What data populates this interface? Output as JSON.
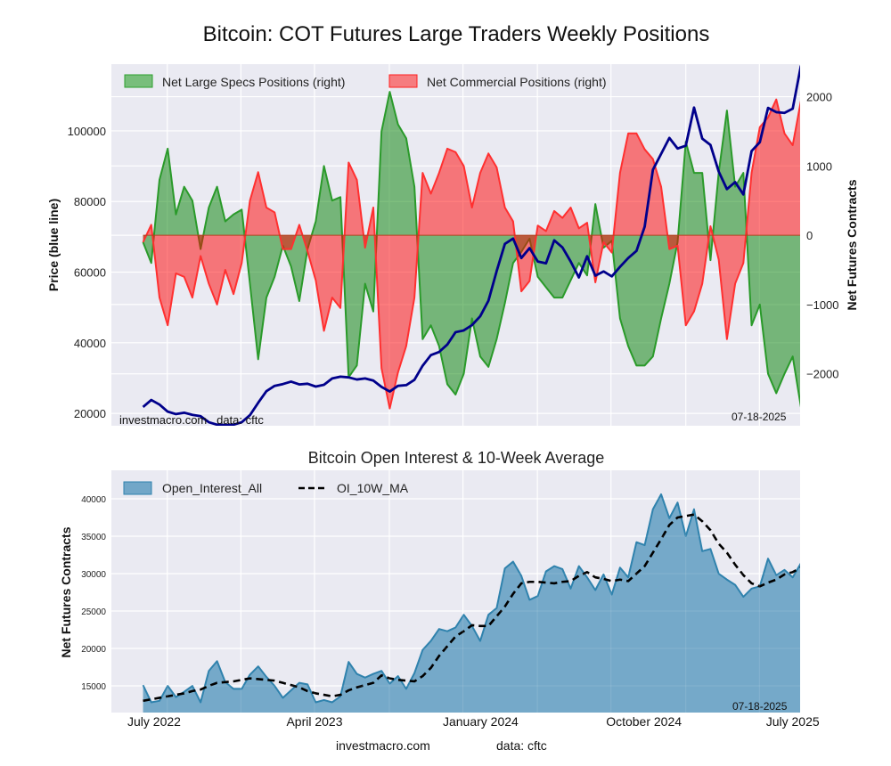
{
  "chart_data": [
    {
      "type": "area",
      "title": "Bitcoin: COT Futures Large Traders Weekly Positions",
      "x_unit": "weeks (weekly data, biweekly samples)",
      "x": [
        0,
        2,
        4,
        6,
        8,
        10,
        12,
        14,
        16,
        18,
        20,
        22,
        24,
        26,
        28,
        30,
        32,
        34,
        36,
        38,
        40,
        42,
        44,
        46,
        48,
        50,
        52,
        54,
        56,
        58,
        60,
        62,
        64,
        66,
        68,
        70,
        72,
        74,
        76,
        78,
        80,
        82,
        84,
        86,
        88,
        90,
        92,
        94,
        96,
        98,
        100,
        102,
        104,
        106,
        108,
        110,
        112,
        114,
        116,
        118,
        120,
        122,
        124,
        126,
        128,
        130,
        132,
        134,
        136,
        138,
        140,
        142,
        144,
        146,
        148,
        150,
        152,
        154,
        156,
        158,
        160
      ],
      "xlim": [
        -7.7,
        159.8
      ],
      "ylabel_left": "Price (blue line)",
      "ylabel_right": "Net Futures Contracts",
      "ylim_left": [
        16500,
        118900
      ],
      "ylim_right": [
        -2750,
        2470
      ],
      "yticks_left": [
        "20000",
        "40000",
        "60000",
        "80000",
        "100000"
      ],
      "yticks_left_values": [
        20000,
        40000,
        60000,
        80000,
        100000
      ],
      "yticks_right": [
        "−2000",
        "−1000",
        "0",
        "1000",
        "2000"
      ],
      "yticks_right_values": [
        -2000,
        -1000,
        0,
        1000,
        2000
      ],
      "grid": true,
      "legend_position": "top-left",
      "series": [
        {
          "name": "Net Large Specs Positions (right)",
          "kind": "fill-to-zero",
          "axis": "right",
          "color": "#2ca02c",
          "values": [
            -100,
            -400,
            800,
            1250,
            300,
            700,
            500,
            -200,
            400,
            700,
            200,
            300,
            370,
            -700,
            -1790,
            -900,
            -600,
            -150,
            -450,
            -950,
            -200,
            200,
            1000,
            500,
            550,
            -2050,
            -1880,
            -700,
            -1100,
            1500,
            2070,
            1600,
            1400,
            700,
            -1500,
            -1300,
            -1600,
            -2150,
            -2300,
            -2000,
            -1200,
            -1750,
            -1900,
            -1500,
            -980,
            -400,
            -240,
            -50,
            -600,
            -750,
            -900,
            -900,
            -650,
            -400,
            -580,
            450,
            -180,
            -80,
            -1200,
            -1600,
            -1880,
            -1880,
            -1750,
            -1200,
            -700,
            -100,
            1350,
            900,
            900,
            -360,
            900,
            1800,
            700,
            900,
            -1300,
            -1000,
            -2000,
            -2280,
            -2000,
            -1750,
            -2480
          ]
        },
        {
          "name": "Net Commercial Positions (right)",
          "kind": "fill-to-zero",
          "axis": "right",
          "color": "#ff2020",
          "values": [
            -100,
            150,
            -900,
            -1300,
            -550,
            -600,
            -900,
            -300,
            -700,
            -1000,
            -500,
            -850,
            -400,
            500,
            910,
            400,
            330,
            -200,
            -200,
            150,
            -230,
            -650,
            -1380,
            -900,
            -1050,
            1050,
            800,
            -180,
            400,
            -1920,
            -2500,
            -1980,
            -1600,
            -900,
            900,
            600,
            900,
            1250,
            1200,
            1000,
            400,
            900,
            1180,
            980,
            400,
            200,
            -810,
            -660,
            140,
            60,
            350,
            250,
            400,
            100,
            180,
            -680,
            -100,
            -250,
            900,
            1470,
            1470,
            1240,
            1100,
            700,
            -200,
            -150,
            -1300,
            -1100,
            -700,
            130,
            -350,
            -1500,
            -700,
            -400,
            900,
            1560,
            1700,
            1960,
            1470,
            1300,
            1940
          ]
        },
        {
          "name": "Price",
          "kind": "line",
          "axis": "left",
          "color": "#00008b",
          "values": [
            21800,
            23800,
            22500,
            20500,
            19800,
            20200,
            19600,
            19200,
            17500,
            16800,
            16700,
            16800,
            17500,
            19500,
            23000,
            26300,
            27800,
            28300,
            29000,
            28200,
            28400,
            27600,
            28100,
            29900,
            30400,
            30200,
            29600,
            29900,
            29300,
            27500,
            26200,
            27800,
            28000,
            29500,
            33500,
            36500,
            37400,
            39500,
            43000,
            43500,
            45000,
            47500,
            51900,
            60300,
            68000,
            69500,
            64000,
            66800,
            63000,
            62500,
            69000,
            67000,
            63000,
            58500,
            64500,
            59000,
            60200,
            58800,
            61500,
            64000,
            66000,
            72900,
            89000,
            93500,
            98000,
            95000,
            95800,
            106600,
            97800,
            96000,
            88500,
            83500,
            85500,
            82000,
            94300,
            96800,
            106500,
            105300,
            105100,
            106300,
            118500
          ]
        }
      ],
      "annotations": {
        "source": "investmacro.com   data: cftc",
        "date": "07-18-2025"
      }
    },
    {
      "type": "area",
      "title": "Bitcoin Open Interest & 10-Week Average",
      "x_unit": "weeks (weekly data, biweekly samples)",
      "x": [
        0,
        2,
        4,
        6,
        8,
        10,
        12,
        14,
        16,
        18,
        20,
        22,
        24,
        26,
        28,
        30,
        32,
        34,
        36,
        38,
        40,
        42,
        44,
        46,
        48,
        50,
        52,
        54,
        56,
        58,
        60,
        62,
        64,
        66,
        68,
        70,
        72,
        74,
        76,
        78,
        80,
        82,
        84,
        86,
        88,
        90,
        92,
        94,
        96,
        98,
        100,
        102,
        104,
        106,
        108,
        110,
        112,
        114,
        116,
        118,
        120,
        122,
        124,
        126,
        128,
        130,
        132,
        134,
        136,
        138,
        140,
        142,
        144,
        146,
        148,
        150,
        152,
        154,
        156,
        158,
        160
      ],
      "xlim": [
        -7.7,
        159.8
      ],
      "ylabel": "Net Futures Contracts",
      "ylim": [
        11430,
        43810
      ],
      "yticks": [
        "15000",
        "20000",
        "25000",
        "30000",
        "35000",
        "40000"
      ],
      "yticks_values": [
        15000,
        20000,
        25000,
        30000,
        35000,
        40000
      ],
      "xtick_labels": [
        "July 2022",
        "April 2023",
        "January 2024",
        "October 2024",
        "July 2025"
      ],
      "xtick_positions": [
        2.7,
        41.7,
        82.1,
        121.8,
        158
      ],
      "grid": true,
      "legend_position": "top-left",
      "series": [
        {
          "name": "Open_Interest_All",
          "kind": "area",
          "color": "#72a7c8",
          "line_color": "#2f82ad",
          "values": [
            15100,
            12800,
            13000,
            15000,
            13500,
            14200,
            15000,
            12800,
            17000,
            18300,
            15500,
            14600,
            14600,
            16500,
            17600,
            16200,
            15000,
            13400,
            14400,
            15400,
            15200,
            12800,
            13100,
            12800,
            13600,
            18200,
            16600,
            16100,
            16600,
            17000,
            15300,
            16300,
            14600,
            16700,
            19800,
            21000,
            22600,
            22300,
            22800,
            24500,
            23000,
            21000,
            24500,
            25400,
            30700,
            31600,
            29700,
            26500,
            27000,
            30300,
            31000,
            30600,
            28000,
            31000,
            29500,
            27800,
            29900,
            27200,
            30800,
            29500,
            34200,
            33800,
            38600,
            40600,
            37400,
            39500,
            35000,
            38600,
            33000,
            33300,
            30000,
            29200,
            28500,
            26900,
            28000,
            28300,
            32000,
            29800,
            30500,
            29500,
            31400
          ]
        },
        {
          "name": "OI_10W_MA",
          "kind": "dashed-line",
          "color": "#000000",
          "values": [
            13000,
            13200,
            13400,
            13600,
            13800,
            14000,
            14300,
            14500,
            15000,
            15400,
            15500,
            15600,
            15800,
            16000,
            15900,
            15800,
            15700,
            15400,
            15100,
            14800,
            14300,
            14000,
            13800,
            13600,
            13800,
            14400,
            14800,
            15100,
            15400,
            16400,
            16000,
            15800,
            15700,
            15600,
            16300,
            17400,
            19000,
            20300,
            21600,
            22300,
            23100,
            23000,
            23000,
            24300,
            25600,
            27300,
            28700,
            28900,
            28900,
            28800,
            28700,
            28900,
            29000,
            29700,
            30200,
            29500,
            29300,
            29000,
            29200,
            29000,
            30000,
            31000,
            32800,
            34600,
            36500,
            37500,
            37700,
            37900,
            37000,
            35800,
            34000,
            32800,
            31200,
            29800,
            28700,
            28300,
            28800,
            29200,
            29900,
            30200,
            30800
          ]
        }
      ],
      "annotations": {
        "date": "07-18-2025"
      }
    }
  ],
  "footer": {
    "site": "investmacro.com",
    "source": "data: cftc"
  }
}
